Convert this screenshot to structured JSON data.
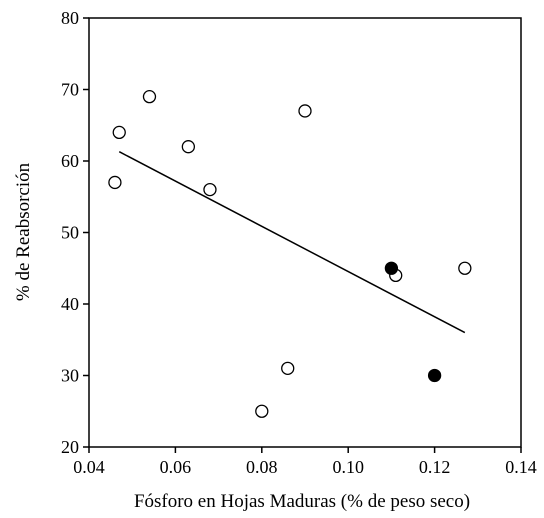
{
  "chart_data": {
    "type": "scatter",
    "xlabel": "Fósforo en Hojas Maduras (% de peso seco)",
    "ylabel": "% de Reabsorción",
    "xlim": [
      0.04,
      0.14
    ],
    "ylim": [
      20,
      80
    ],
    "x_ticks": [
      "0.04",
      "0.06",
      "0.08",
      "0.10",
      "0.12",
      "0.14"
    ],
    "y_ticks": [
      "20",
      "30",
      "40",
      "50",
      "60",
      "70",
      "80"
    ],
    "x_tick_values": [
      0.04,
      0.06,
      0.08,
      0.1,
      0.12,
      0.14
    ],
    "y_tick_values": [
      20,
      30,
      40,
      50,
      60,
      70,
      80
    ],
    "grid": false,
    "series": [
      {
        "marker": "open-circle",
        "x": [
          0.046,
          0.047,
          0.054,
          0.063,
          0.068,
          0.08,
          0.086,
          0.09,
          0.111,
          0.127
        ],
        "y": [
          57,
          64,
          69,
          62,
          56,
          25,
          31,
          67,
          44,
          45
        ]
      },
      {
        "marker": "filled-circle",
        "x": [
          0.11,
          0.12
        ],
        "y": [
          45,
          30
        ]
      }
    ],
    "trendline": {
      "x": [
        0.047,
        0.127
      ],
      "y": [
        61.3,
        36.0
      ]
    }
  }
}
